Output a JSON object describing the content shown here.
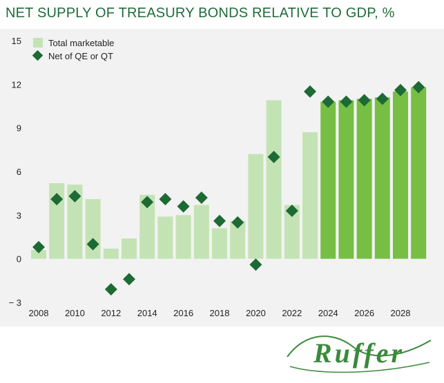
{
  "colors": {
    "title": "#1f6b3a",
    "bar_light": "#c4e3b4",
    "bar_dark": "#77bf44",
    "marker": "#1d6a35",
    "plot_bg": "#f2f2f2"
  },
  "chart_data": {
    "type": "bar",
    "title": "NET SUPPLY OF TREASURY BONDS RELATIVE TO GDP, %",
    "x": [
      2008,
      2009,
      2010,
      2011,
      2012,
      2013,
      2014,
      2015,
      2016,
      2017,
      2018,
      2019,
      2020,
      2021,
      2022,
      2023,
      2024,
      2025,
      2026,
      2027,
      2028,
      2029
    ],
    "x_tick_labels": [
      "2008",
      "2010",
      "2012",
      "2014",
      "2016",
      "2018",
      "2020",
      "2022",
      "2024",
      "2026",
      "2028"
    ],
    "y_tick_labels": [
      "15",
      "12",
      "9",
      "6",
      "3",
      "0",
      "− 3"
    ],
    "ylim": [
      -3,
      15
    ],
    "forecast_from": 2024,
    "grid": false,
    "legend_position": "top-left",
    "series": [
      {
        "name": "Total marketable",
        "type": "bar",
        "values": [
          0.6,
          5.2,
          5.1,
          4.1,
          0.7,
          1.4,
          4.4,
          2.9,
          3.0,
          3.7,
          2.1,
          2.6,
          7.2,
          10.9,
          3.7,
          8.7,
          10.8,
          10.9,
          11.0,
          11.1,
          11.5,
          11.8
        ]
      },
      {
        "name": "Net of QE or QT",
        "type": "marker",
        "values": [
          0.8,
          4.1,
          4.3,
          1.0,
          -2.1,
          -1.4,
          3.9,
          4.1,
          3.6,
          4.2,
          2.6,
          2.5,
          -0.4,
          7.0,
          3.3,
          11.5,
          10.8,
          10.8,
          10.9,
          11.0,
          11.6,
          11.8
        ]
      }
    ]
  },
  "logo": {
    "text": "Ruffer"
  }
}
